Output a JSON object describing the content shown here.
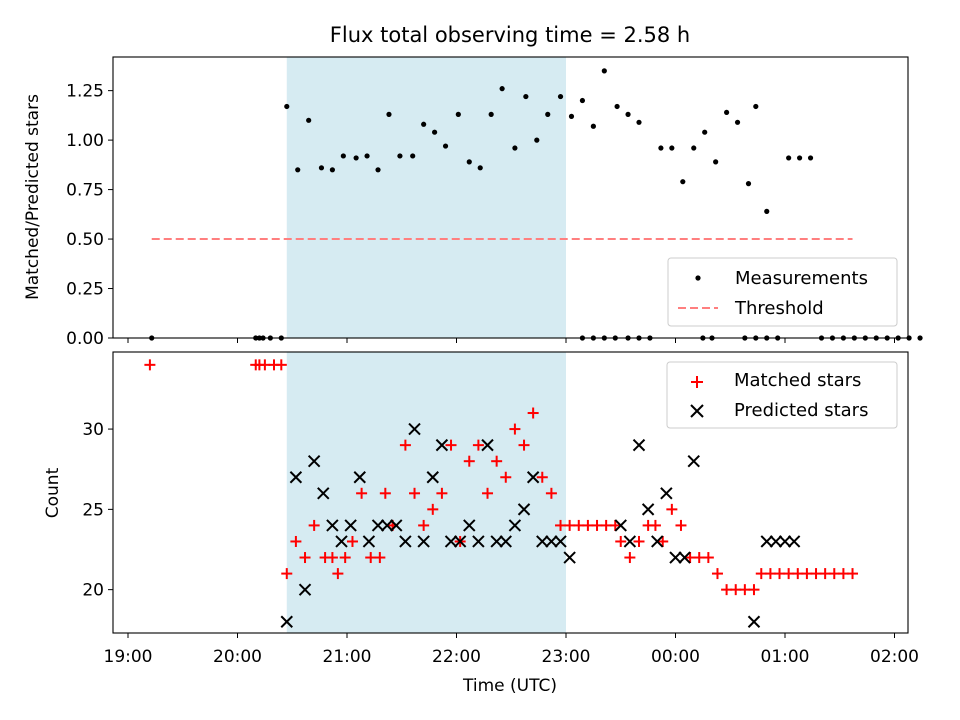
{
  "chart_data": [
    {
      "type": "scatter",
      "title": "Flux total observing time = 2.58 h",
      "xlabel": "",
      "ylabel": "Matched/Predicted stars",
      "ylim": [
        0,
        1.42
      ],
      "yticks": [
        "0.00",
        "0.25",
        "0.50",
        "0.75",
        "1.00",
        "1.25"
      ],
      "shaded_span": {
        "start": "20:27",
        "end": "23:00"
      },
      "threshold": {
        "value": 0.5,
        "start": "19:13",
        "end": "01:37",
        "color": "#ff7f7f"
      },
      "legend_position": "lower right",
      "series": [
        {
          "name": "Measurements",
          "color": "#000000",
          "points": [
            [
              "19:13",
              0
            ],
            [
              "20:10",
              0
            ],
            [
              "20:12",
              0
            ],
            [
              "20:14",
              0
            ],
            [
              "20:18",
              0
            ],
            [
              "20:24",
              0
            ],
            [
              "20:27",
              1.17
            ],
            [
              "20:33",
              0.85
            ],
            [
              "20:39",
              1.1
            ],
            [
              "20:46",
              0.86
            ],
            [
              "20:52",
              0.85
            ],
            [
              "20:58",
              0.92
            ],
            [
              "21:05",
              0.91
            ],
            [
              "21:11",
              0.92
            ],
            [
              "21:17",
              0.85
            ],
            [
              "21:23",
              1.13
            ],
            [
              "21:29",
              0.92
            ],
            [
              "21:36",
              0.92
            ],
            [
              "21:42",
              1.08
            ],
            [
              "21:48",
              1.04
            ],
            [
              "21:54",
              0.97
            ],
            [
              "22:01",
              1.13
            ],
            [
              "22:07",
              0.89
            ],
            [
              "22:13",
              0.86
            ],
            [
              "22:19",
              1.13
            ],
            [
              "22:25",
              1.26
            ],
            [
              "22:32",
              0.96
            ],
            [
              "22:38",
              1.22
            ],
            [
              "22:44",
              1.0
            ],
            [
              "22:50",
              1.13
            ],
            [
              "22:57",
              1.22
            ],
            [
              "23:03",
              1.12
            ],
            [
              "23:09",
              1.2
            ],
            [
              "23:15",
              1.07
            ],
            [
              "23:21",
              1.35
            ],
            [
              "23:28",
              1.17
            ],
            [
              "23:34",
              1.13
            ],
            [
              "23:40",
              1.09
            ],
            [
              "23:09",
              0
            ],
            [
              "23:15",
              0
            ],
            [
              "23:21",
              0
            ],
            [
              "23:27",
              0
            ],
            [
              "23:34",
              0
            ],
            [
              "23:40",
              0
            ],
            [
              "23:46",
              0
            ],
            [
              "23:52",
              0.96
            ],
            [
              "23:58",
              0.96
            ],
            [
              "00:04",
              0.79
            ],
            [
              "00:10",
              0.96
            ],
            [
              "00:16",
              1.04
            ],
            [
              "00:22",
              0.89
            ],
            [
              "00:28",
              1.14
            ],
            [
              "00:34",
              1.09
            ],
            [
              "00:40",
              0.78
            ],
            [
              "00:15",
              0
            ],
            [
              "00:20",
              0
            ],
            [
              "00:38",
              0
            ],
            [
              "00:44",
              1.17
            ],
            [
              "00:50",
              0.64
            ],
            [
              "00:44",
              0
            ],
            [
              "00:50",
              0
            ],
            [
              "00:56",
              0
            ],
            [
              "01:02",
              0.91
            ],
            [
              "01:08",
              0.91
            ],
            [
              "01:14",
              0.91
            ],
            [
              "01:20",
              0
            ],
            [
              "01:26",
              0
            ],
            [
              "01:32",
              0
            ],
            [
              "01:38",
              0
            ],
            [
              "01:44",
              0
            ],
            [
              "01:50",
              0
            ],
            [
              "01:56",
              0
            ],
            [
              "02:02",
              0
            ],
            [
              "02:08",
              0
            ],
            [
              "02:14",
              0
            ]
          ]
        },
        {
          "name": "Threshold",
          "color": "#ff7f7f",
          "style": "dashed"
        }
      ]
    },
    {
      "type": "scatter",
      "title": "",
      "xlabel": "Time (UTC)",
      "ylabel": "Count",
      "ylim": [
        17.3,
        34.8
      ],
      "yticks": [
        "20",
        "25",
        "30"
      ],
      "xticks": [
        "19:00",
        "20:00",
        "21:00",
        "22:00",
        "23:00",
        "00:00",
        "01:00",
        "02:00"
      ],
      "shaded_span": {
        "start": "20:27",
        "end": "23:00"
      },
      "legend_position": "upper right",
      "series": [
        {
          "name": "Matched stars",
          "color": "#ff0000",
          "marker": "plus",
          "points": [
            [
              "19:12",
              34
            ],
            [
              "20:10",
              34
            ],
            [
              "20:12",
              34
            ],
            [
              "20:15",
              34
            ],
            [
              "20:20",
              34
            ],
            [
              "20:24",
              34
            ],
            [
              "20:27",
              21
            ],
            [
              "20:32",
              23
            ],
            [
              "20:37",
              22
            ],
            [
              "20:42",
              24
            ],
            [
              "20:48",
              22
            ],
            [
              "20:52",
              22
            ],
            [
              "20:55",
              21
            ],
            [
              "20:59",
              22
            ],
            [
              "21:03",
              23
            ],
            [
              "21:08",
              26
            ],
            [
              "21:13",
              22
            ],
            [
              "21:18",
              22
            ],
            [
              "21:21",
              26
            ],
            [
              "21:25",
              24
            ],
            [
              "21:32",
              29
            ],
            [
              "21:37",
              26
            ],
            [
              "21:42",
              24
            ],
            [
              "21:47",
              25
            ],
            [
              "21:52",
              26
            ],
            [
              "21:57",
              29
            ],
            [
              "22:02",
              23
            ],
            [
              "22:07",
              28
            ],
            [
              "22:12",
              29
            ],
            [
              "22:17",
              26
            ],
            [
              "22:22",
              28
            ],
            [
              "22:27",
              27
            ],
            [
              "22:32",
              30
            ],
            [
              "22:37",
              29
            ],
            [
              "22:42",
              31
            ],
            [
              "22:47",
              27
            ],
            [
              "22:52",
              26
            ],
            [
              "22:57",
              24
            ],
            [
              "23:02",
              24
            ],
            [
              "23:07",
              24
            ],
            [
              "23:12",
              24
            ],
            [
              "23:17",
              24
            ],
            [
              "23:22",
              24
            ],
            [
              "23:27",
              24
            ],
            [
              "23:30",
              23
            ],
            [
              "23:35",
              22
            ],
            [
              "23:40",
              23
            ],
            [
              "23:45",
              24
            ],
            [
              "23:49",
              24
            ],
            [
              "23:53",
              23
            ],
            [
              "23:58",
              25
            ],
            [
              "00:03",
              24
            ],
            [
              "00:08",
              22
            ],
            [
              "00:13",
              22
            ],
            [
              "00:18",
              22
            ],
            [
              "00:23",
              21
            ],
            [
              "00:28",
              20
            ],
            [
              "00:33",
              20
            ],
            [
              "00:38",
              20
            ],
            [
              "00:43",
              20
            ],
            [
              "00:47",
              21
            ],
            [
              "00:52",
              21
            ],
            [
              "00:57",
              21
            ],
            [
              "01:02",
              21
            ],
            [
              "01:07",
              21
            ],
            [
              "01:12",
              21
            ],
            [
              "01:17",
              21
            ],
            [
              "01:22",
              21
            ],
            [
              "01:27",
              21
            ],
            [
              "01:32",
              21
            ],
            [
              "01:37",
              21
            ]
          ]
        },
        {
          "name": "Predicted stars",
          "color": "#000000",
          "marker": "x",
          "points": [
            [
              "20:27",
              18
            ],
            [
              "20:32",
              27
            ],
            [
              "20:37",
              20
            ],
            [
              "20:42",
              28
            ],
            [
              "20:47",
              26
            ],
            [
              "20:52",
              24
            ],
            [
              "20:57",
              23
            ],
            [
              "21:02",
              24
            ],
            [
              "21:07",
              27
            ],
            [
              "21:12",
              23
            ],
            [
              "21:17",
              24
            ],
            [
              "21:22",
              24
            ],
            [
              "21:27",
              24
            ],
            [
              "21:32",
              23
            ],
            [
              "21:37",
              30
            ],
            [
              "21:42",
              23
            ],
            [
              "21:47",
              27
            ],
            [
              "21:52",
              29
            ],
            [
              "21:57",
              23
            ],
            [
              "22:02",
              23
            ],
            [
              "22:07",
              24
            ],
            [
              "22:12",
              23
            ],
            [
              "22:17",
              29
            ],
            [
              "22:22",
              23
            ],
            [
              "22:27",
              23
            ],
            [
              "22:32",
              24
            ],
            [
              "22:37",
              25
            ],
            [
              "22:42",
              27
            ],
            [
              "22:47",
              23
            ],
            [
              "22:52",
              23
            ],
            [
              "22:57",
              23
            ],
            [
              "23:02",
              22
            ],
            [
              "23:30",
              24
            ],
            [
              "23:35",
              23
            ],
            [
              "23:40",
              29
            ],
            [
              "23:45",
              25
            ],
            [
              "23:50",
              23
            ],
            [
              "23:55",
              26
            ],
            [
              "00:00",
              22
            ],
            [
              "00:05",
              22
            ],
            [
              "00:10",
              28
            ],
            [
              "00:43",
              18
            ],
            [
              "00:50",
              23
            ],
            [
              "00:55",
              23
            ],
            [
              "01:00",
              23
            ],
            [
              "01:05",
              23
            ]
          ]
        }
      ]
    }
  ]
}
